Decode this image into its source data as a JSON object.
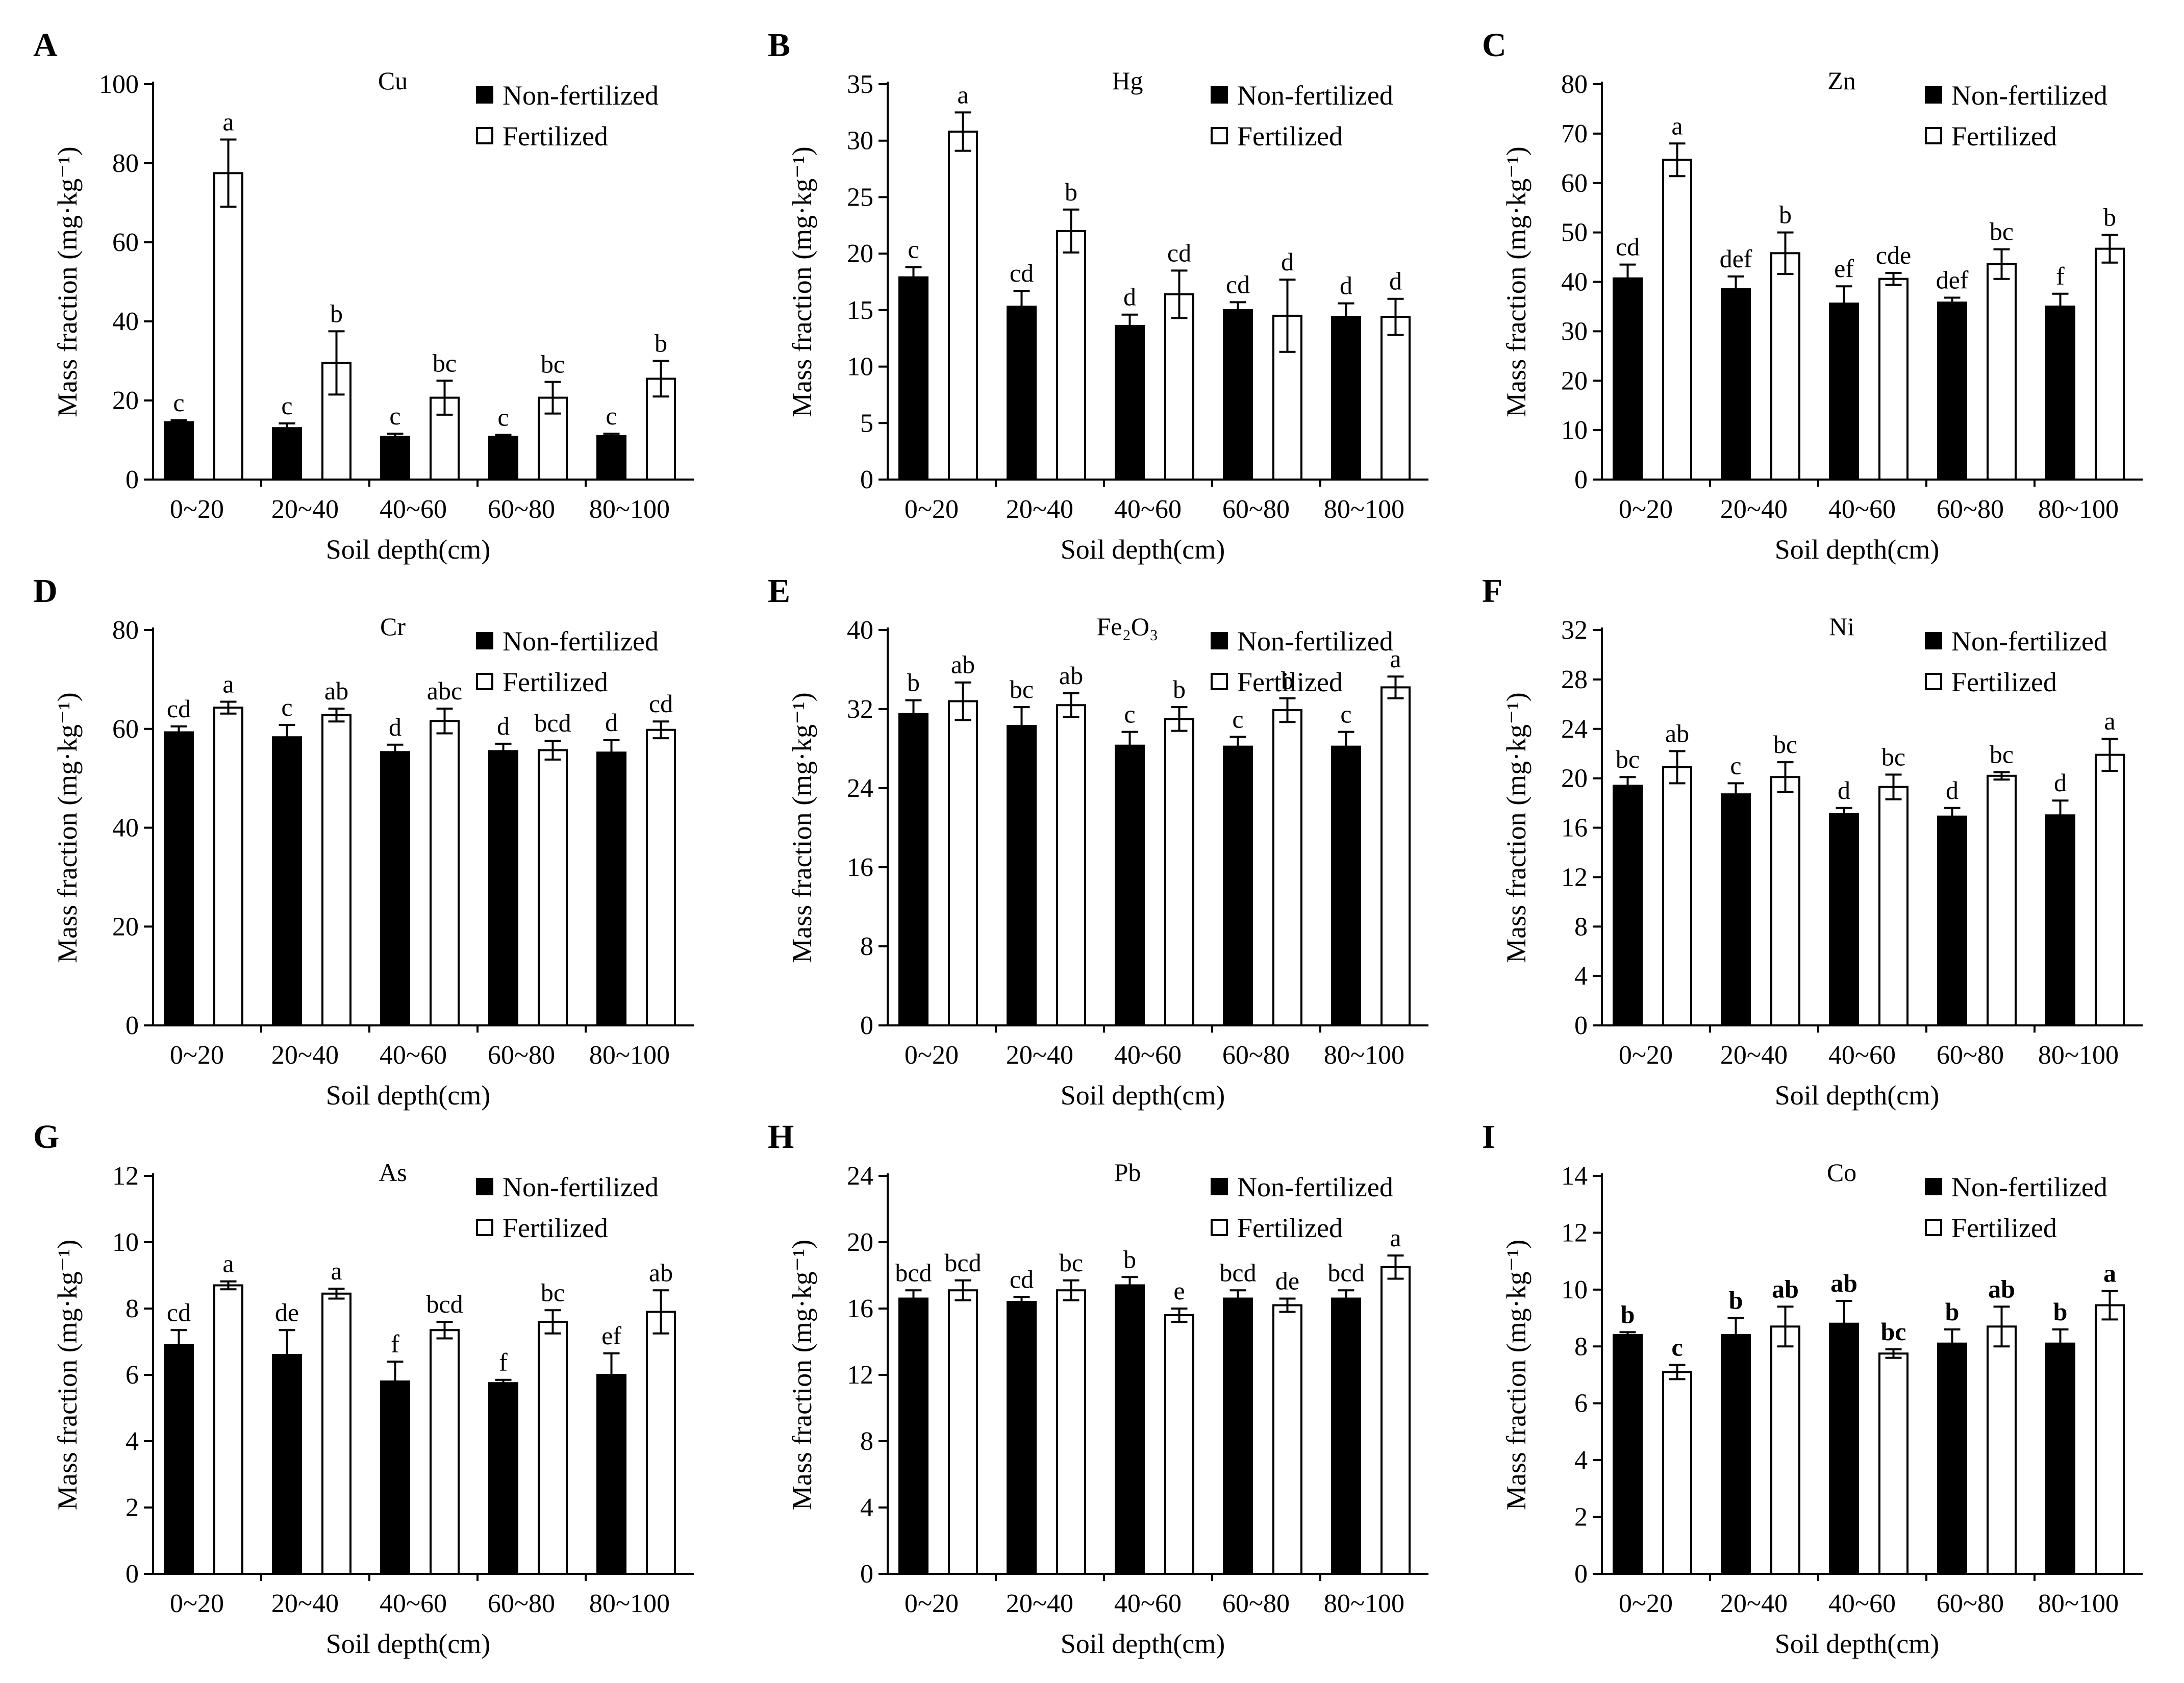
{
  "figure": {
    "legend_labels": [
      "Non-fertilized",
      "Fertilized"
    ],
    "series_colors": {
      "Non-fertilized": "#000000",
      "Fertilized": "#ffffff"
    }
  },
  "chart_data": [
    {
      "panel": "A",
      "title": "Cu",
      "type": "bar",
      "xlabel": "Soil depth(cm)",
      "ylabel": "Mass fraction (mg·kg⁻¹)",
      "categories": [
        "0~20",
        "20~40",
        "40~60",
        "60~80",
        "80~100"
      ],
      "ylim": [
        0,
        100
      ],
      "yticks": [
        "0",
        "20",
        "40",
        "60",
        "80",
        "100"
      ],
      "legend_position": "top-right",
      "grid": false,
      "bold_letters": false,
      "series": [
        {
          "name": "Non-fertilized",
          "values": [
            14.5,
            13,
            10.8,
            10.8,
            11
          ],
          "errors": [
            0.5,
            1.2,
            0.8,
            0.5,
            0.6
          ],
          "letters": [
            "c",
            "c",
            "c",
            "c",
            "c"
          ]
        },
        {
          "name": "Fertilized",
          "values": [
            77.5,
            29.5,
            20.7,
            20.7,
            25.5
          ],
          "errors": [
            8.5,
            8,
            4.3,
            4,
            4.5
          ],
          "letters": [
            "a",
            "b",
            "bc",
            "bc",
            "b"
          ]
        }
      ]
    },
    {
      "panel": "B",
      "title": "Hg",
      "type": "bar",
      "xlabel": "Soil depth(cm)",
      "ylabel": "Mass fraction (mg·kg⁻¹)",
      "categories": [
        "0~20",
        "20~40",
        "40~60",
        "60~80",
        "80~100"
      ],
      "ylim": [
        0,
        35
      ],
      "yticks": [
        "0",
        "5",
        "10",
        "15",
        "20",
        "25",
        "30",
        "35"
      ],
      "legend_position": "top-right",
      "grid": false,
      "bold_letters": false,
      "series": [
        {
          "name": "Non-fertilized",
          "values": [
            17.9,
            15.3,
            13.6,
            15,
            14.4
          ],
          "errors": [
            0.9,
            1.4,
            1,
            0.7,
            1.2
          ],
          "letters": [
            "c",
            "cd",
            "d",
            "cd",
            "d"
          ]
        },
        {
          "name": "Fertilized",
          "values": [
            30.8,
            22,
            16.4,
            14.5,
            14.4
          ],
          "errors": [
            1.7,
            1.9,
            2.1,
            3.2,
            1.6
          ],
          "letters": [
            "a",
            "b",
            "cd",
            "d",
            "d"
          ]
        }
      ]
    },
    {
      "panel": "C",
      "title": "Zn",
      "type": "bar",
      "xlabel": "Soil depth(cm)",
      "ylabel": "Mass fraction (mg·kg⁻¹)",
      "categories": [
        "0~20",
        "20~40",
        "40~60",
        "60~80",
        "80~100"
      ],
      "ylim": [
        0,
        80
      ],
      "yticks": [
        "0",
        "10",
        "20",
        "30",
        "40",
        "50",
        "60",
        "70",
        "80"
      ],
      "legend_position": "top-right",
      "grid": false,
      "bold_letters": false,
      "series": [
        {
          "name": "Non-fertilized",
          "values": [
            40.7,
            38.5,
            35.6,
            35.8,
            35
          ],
          "errors": [
            2.8,
            2.6,
            3.5,
            1,
            2.6
          ],
          "letters": [
            "cd",
            "def",
            "ef",
            "def",
            "f"
          ]
        },
        {
          "name": "Fertilized",
          "values": [
            64.7,
            45.8,
            40.6,
            43.6,
            46.7
          ],
          "errors": [
            3.3,
            4.2,
            1.2,
            3,
            2.8
          ],
          "letters": [
            "a",
            "b",
            "cde",
            "bc",
            "b"
          ]
        }
      ]
    },
    {
      "panel": "D",
      "title": "Cr",
      "type": "bar",
      "xlabel": "Soil depth(cm)",
      "ylabel": "Mass fraction (mg·kg⁻¹)",
      "categories": [
        "0~20",
        "20~40",
        "40~60",
        "60~80",
        "80~100"
      ],
      "ylim": [
        0,
        80
      ],
      "yticks": [
        "0",
        "20",
        "40",
        "60",
        "80"
      ],
      "legend_position": "top-right",
      "grid": false,
      "bold_letters": false,
      "series": [
        {
          "name": "Non-fertilized",
          "values": [
            59.3,
            58.3,
            55.3,
            55.5,
            55.2
          ],
          "errors": [
            1.2,
            2.5,
            1.5,
            1.5,
            2.5
          ],
          "letters": [
            "cd",
            "c",
            "d",
            "d",
            "d"
          ]
        },
        {
          "name": "Fertilized",
          "values": [
            64.3,
            62.8,
            61.6,
            55.7,
            59.8
          ],
          "errors": [
            1.2,
            1.3,
            2.5,
            1.9,
            1.7
          ],
          "letters": [
            "a",
            "ab",
            "abc",
            "bcd",
            "cd"
          ]
        }
      ]
    },
    {
      "panel": "E",
      "title": "Fe₂O₃",
      "type": "bar",
      "xlabel": "Soil depth(cm)",
      "ylabel": "Mass fraction (mg·kg⁻¹)",
      "categories": [
        "0~20",
        "20~40",
        "40~60",
        "60~80",
        "80~100"
      ],
      "ylim": [
        0,
        40
      ],
      "yticks": [
        "0",
        "8",
        "16",
        "24",
        "32",
        "40"
      ],
      "legend_position": "top-right",
      "grid": false,
      "bold_letters": false,
      "series": [
        {
          "name": "Non-fertilized",
          "values": [
            31.5,
            30.3,
            28.3,
            28.2,
            28.2
          ],
          "errors": [
            1.4,
            1.9,
            1.4,
            1,
            1.5
          ],
          "letters": [
            "b",
            "bc",
            "c",
            "c",
            "c"
          ]
        },
        {
          "name": "Fertilized",
          "values": [
            32.8,
            32.4,
            31,
            31.9,
            34.2
          ],
          "errors": [
            1.9,
            1.2,
            1.2,
            1.2,
            1.1
          ],
          "letters": [
            "ab",
            "ab",
            "b",
            "b",
            "a"
          ]
        }
      ]
    },
    {
      "panel": "F",
      "title": "Ni",
      "type": "bar",
      "xlabel": "Soil depth(cm)",
      "ylabel": "Mass fraction (mg·kg⁻¹)",
      "categories": [
        "0~20",
        "20~40",
        "40~60",
        "60~80",
        "80~100"
      ],
      "ylim": [
        0,
        32
      ],
      "yticks": [
        "0",
        "4",
        "8",
        "12",
        "16",
        "20",
        "24",
        "28",
        "32"
      ],
      "legend_position": "top-right",
      "grid": false,
      "bold_letters": false,
      "series": [
        {
          "name": "Non-fertilized",
          "values": [
            19.4,
            18.7,
            17.1,
            16.9,
            17
          ],
          "errors": [
            0.7,
            0.9,
            0.5,
            0.7,
            1.2
          ],
          "letters": [
            "bc",
            "c",
            "d",
            "d",
            "d"
          ]
        },
        {
          "name": "Fertilized",
          "values": [
            20.9,
            20.1,
            19.3,
            20.2,
            21.9
          ],
          "errors": [
            1.3,
            1.2,
            1,
            0.3,
            1.3
          ],
          "letters": [
            "ab",
            "bc",
            "bc",
            "bc",
            "a"
          ]
        }
      ]
    },
    {
      "panel": "G",
      "title": "As",
      "type": "bar",
      "xlabel": "Soil depth(cm)",
      "ylabel": "Mass fraction (mg·kg⁻¹)",
      "categories": [
        "0~20",
        "20~40",
        "40~60",
        "60~80",
        "80~100"
      ],
      "ylim": [
        0,
        12
      ],
      "yticks": [
        "0",
        "2",
        "4",
        "6",
        "8",
        "10",
        "12"
      ],
      "legend_position": "top-right",
      "grid": false,
      "bold_letters": false,
      "series": [
        {
          "name": "Non-fertilized",
          "values": [
            6.9,
            6.6,
            5.8,
            5.75,
            6
          ],
          "errors": [
            0.45,
            0.75,
            0.6,
            0.1,
            0.65
          ],
          "letters": [
            "cd",
            "de",
            "f",
            "f",
            "ef"
          ]
        },
        {
          "name": "Fertilized",
          "values": [
            8.7,
            8.45,
            7.35,
            7.6,
            7.9
          ],
          "errors": [
            0.12,
            0.15,
            0.25,
            0.35,
            0.65
          ],
          "letters": [
            "a",
            "a",
            "bcd",
            "bc",
            "ab"
          ]
        }
      ]
    },
    {
      "panel": "H",
      "title": "Pb",
      "type": "bar",
      "xlabel": "Soil depth(cm)",
      "ylabel": "Mass fraction (mg·kg⁻¹)",
      "categories": [
        "0~20",
        "20~40",
        "40~60",
        "60~80",
        "80~100"
      ],
      "ylim": [
        0,
        24
      ],
      "yticks": [
        "0",
        "4",
        "8",
        "12",
        "16",
        "20",
        "24"
      ],
      "legend_position": "top-right",
      "grid": false,
      "bold_letters": false,
      "series": [
        {
          "name": "Non-fertilized",
          "values": [
            16.6,
            16.4,
            17.4,
            16.6,
            16.6
          ],
          "errors": [
            0.5,
            0.3,
            0.5,
            0.5,
            0.5
          ],
          "letters": [
            "bcd",
            "cd",
            "b",
            "bcd",
            "bcd"
          ]
        },
        {
          "name": "Fertilized",
          "values": [
            17.1,
            17.1,
            15.6,
            16.2,
            18.5
          ],
          "errors": [
            0.6,
            0.6,
            0.4,
            0.4,
            0.7
          ],
          "letters": [
            "bcd",
            "bc",
            "e",
            "de",
            "a"
          ]
        }
      ]
    },
    {
      "panel": "I",
      "title": "Co",
      "type": "bar",
      "xlabel": "Soil depth(cm)",
      "ylabel": "Mass fraction (mg·kg⁻¹)",
      "categories": [
        "0~20",
        "20~40",
        "40~60",
        "60~80",
        "80~100"
      ],
      "ylim": [
        0,
        14
      ],
      "yticks": [
        "0",
        "2",
        "4",
        "6",
        "8",
        "10",
        "12",
        "14"
      ],
      "legend_position": "top-right",
      "grid": false,
      "bold_letters": true,
      "series": [
        {
          "name": "Non-fertilized",
          "values": [
            8.4,
            8.4,
            8.8,
            8.1,
            8.1
          ],
          "errors": [
            0.1,
            0.6,
            0.8,
            0.5,
            0.5
          ],
          "letters": [
            "b",
            "b",
            "ab",
            "b",
            "b"
          ]
        },
        {
          "name": "Fertilized",
          "values": [
            7.1,
            8.7,
            7.75,
            8.7,
            9.45
          ],
          "errors": [
            0.25,
            0.7,
            0.15,
            0.7,
            0.5
          ],
          "letters": [
            "c",
            "ab",
            "bc",
            "ab",
            "a"
          ]
        }
      ]
    }
  ]
}
